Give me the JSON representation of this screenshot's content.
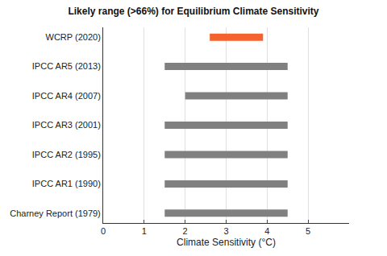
{
  "chart_data": {
    "type": "bar",
    "orientation": "horizontal",
    "title": "Likely range (>66%) for Equilibrium Climate Sensitivity",
    "x_label": "Climate Sensitivity (°C)",
    "categories": [
      "WCRP (2020)",
      "IPCC AR5 (2013)",
      "IPCC AR4 (2007)",
      "IPCC AR3 (2001)",
      "IPCC AR2 (1995)",
      "IPCC AR1 (1990)",
      "Charney Report (1979)"
    ],
    "low": [
      2.6,
      1.5,
      2.0,
      1.5,
      1.5,
      1.5,
      1.5
    ],
    "high": [
      3.9,
      4.5,
      4.5,
      4.5,
      4.5,
      4.5,
      4.5
    ],
    "colors": [
      "#f4622d",
      "#808080",
      "#808080",
      "#808080",
      "#808080",
      "#808080",
      "#808080"
    ],
    "xlim": [
      0,
      6
    ],
    "xticks": [
      0,
      1,
      2,
      3,
      4,
      5
    ],
    "grid": true
  }
}
